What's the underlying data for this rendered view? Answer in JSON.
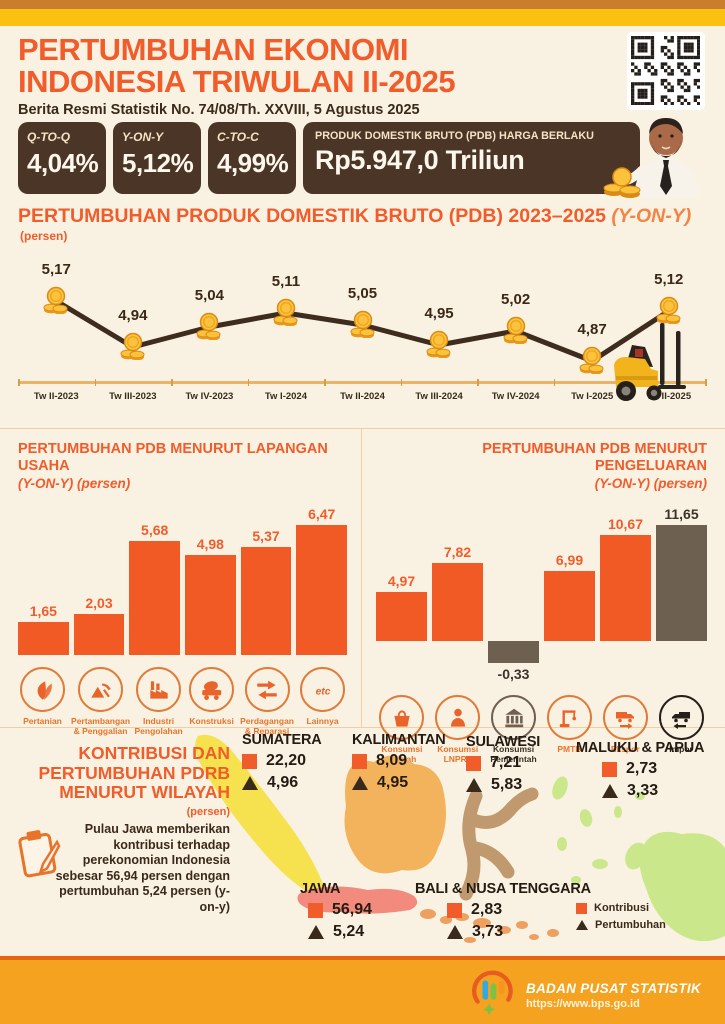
{
  "header": {
    "title_line1": "PERTUMBUHAN EKONOMI",
    "title_line2": "INDONESIA TRIWULAN II-2025",
    "subtitle": "Berita Resmi Statistik No. 74/08/Th. XXVIII, 5 Agustus 2025"
  },
  "stats": {
    "cards": [
      {
        "label": "Q-TO-Q",
        "value": "4,04%"
      },
      {
        "label": "Y-ON-Y",
        "value": "5,12%"
      },
      {
        "label": "C-TO-C",
        "value": "4,99%"
      }
    ],
    "pdb": {
      "label": "PRODUK DOMESTIK BRUTO (PDB) HARGA BERLAKU",
      "value": "Rp5.947,0 Triliun"
    }
  },
  "chart_data": [
    {
      "type": "line",
      "title": "PERTUMBUHAN PRODUK DOMESTIK BRUTO (PDB) 2023–2025",
      "title_suffix": "(Y-ON-Y)",
      "subtitle": "(persen)",
      "x": [
        "Tw II-2023",
        "Tw III-2023",
        "Tw IV-2023",
        "Tw I-2024",
        "Tw II-2024",
        "Tw III-2024",
        "Tw IV-2024",
        "Tw I-2025",
        "Tw II-2025"
      ],
      "values": [
        5.17,
        4.94,
        5.04,
        5.11,
        5.05,
        4.95,
        5.02,
        4.87,
        5.12
      ],
      "labels": [
        "5,17",
        "4,94",
        "5,04",
        "5,11",
        "5,05",
        "4,95",
        "5,02",
        "4,87",
        "5,12"
      ],
      "ylim": [
        4.8,
        5.25
      ],
      "grid": false
    },
    {
      "type": "bar",
      "title": "PERTUMBUHAN PDB MENURUT LAPANGAN USAHA",
      "subtitle": "(Y-ON-Y) (persen)",
      "categories": [
        "Pertanian",
        "Pertambangan & Penggalian",
        "Industri Pengolahan",
        "Konstruksi",
        "Perdagangan & Reparasi",
        "Lainnya"
      ],
      "values": [
        1.65,
        2.03,
        5.68,
        4.98,
        5.37,
        6.47
      ],
      "labels": [
        "1,65",
        "2,03",
        "5,68",
        "4,98",
        "5,37",
        "6,47"
      ],
      "ylim": [
        0,
        7
      ]
    },
    {
      "type": "bar",
      "title": "PERTUMBUHAN PDB MENURUT PENGELUARAN",
      "subtitle": "(Y-ON-Y) (persen)",
      "categories": [
        "Konsumsi Rumah Tangga",
        "Konsumsi LNPRT",
        "Konsumsi Pemerintah",
        "PMTB",
        "Ekspor",
        "Impor"
      ],
      "values": [
        4.97,
        7.82,
        -0.33,
        6.99,
        10.67,
        11.65
      ],
      "labels": [
        "4,97",
        "7,82",
        "-0,33",
        "6,99",
        "10,67",
        "11,65"
      ],
      "dark_indices": [
        2,
        5
      ],
      "ylim": [
        -1,
        12
      ]
    }
  ],
  "map": {
    "title_line1": "KONTRIBUSI DAN",
    "title_line2": "PERTUMBUHAN PDRB",
    "title_line3": "MENURUT WILAYAH",
    "unit": "(persen)",
    "note": "Pulau Jawa memberikan kontribusi terhadap perekonomian Indonesia sebesar 56,94 persen dengan pertumbuhan 5,24 persen (y-on-y)",
    "regions": [
      {
        "name": "SUMATERA",
        "kontribusi": "22,20",
        "pertumbuhan": "4,96"
      },
      {
        "name": "KALIMANTAN",
        "kontribusi": "8,09",
        "pertumbuhan": "4,95"
      },
      {
        "name": "SULAWESI",
        "kontribusi": "7,21",
        "pertumbuhan": "5,83"
      },
      {
        "name": "MALUKU & PAPUA",
        "kontribusi": "2,73",
        "pertumbuhan": "3,33"
      },
      {
        "name": "JAWA",
        "kontribusi": "56,94",
        "pertumbuhan": "5,24"
      },
      {
        "name": "BALI & NUSA TENGGARA",
        "kontribusi": "2,83",
        "pertumbuhan": "3,73"
      }
    ],
    "legend": {
      "kontribusi": "Kontribusi",
      "pertumbuhan": "Pertumbuhan"
    }
  },
  "footer": {
    "org": "BADAN PUSAT STATISTIK",
    "url": "https://www.bps.go.id"
  },
  "colors": {
    "accent_orange": "#f15c2b",
    "bar_orange": "#f15a24",
    "bar_dark": "#6e6051",
    "card_brown": "#4b3526",
    "strip_yellow": "#fcc011",
    "footer_amber": "#f4a21f",
    "background_cream": "#f9f2e2",
    "map_sumatera": "#f6e14e",
    "map_kalimantan": "#f2b35c",
    "map_sulawesi": "#c09a6e",
    "map_maluku_papua": "#cbe78c",
    "map_jawa": "#f28b7d",
    "map_bali_nt": "#eda05f"
  }
}
